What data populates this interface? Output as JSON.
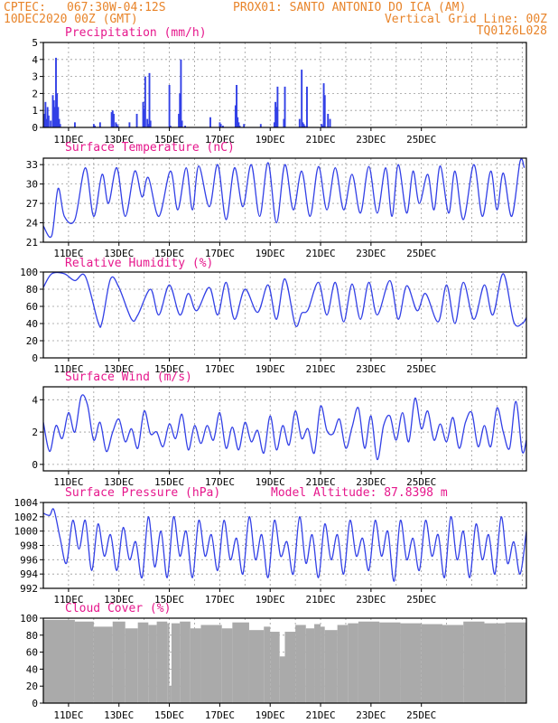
{
  "header": {
    "line1_left": "CPTEC:",
    "line1_coords": "067:30W-04:12S",
    "line1_station": "PROX01: SANTO ANTONIO DO ICA (AM)",
    "line2_left": "10DEC2020 00Z (GMT)",
    "line2_right": "Vertical Grid Line: 00Z",
    "line3_right": "TQ0126L028"
  },
  "colors": {
    "header": "#e8842a",
    "title": "#e6178c",
    "line": "#3240e6",
    "cloud": "#aaaaaa"
  },
  "day_labels": [
    "11DEC",
    "13DEC",
    "15DEC",
    "17DEC",
    "19DEC",
    "21DEC",
    "23DEC",
    "25DEC"
  ],
  "chart_data": [
    {
      "type": "bar",
      "title": "Precipitation (mm/h)",
      "ylim": [
        0,
        5
      ],
      "yticks": [
        "0",
        "1",
        "2",
        "3",
        "4",
        "5"
      ],
      "grid": true,
      "x_unit": "hours since 10DEC2020 00Z",
      "x": [
        1,
        2,
        3,
        4,
        5,
        7,
        9,
        10,
        11,
        12,
        13,
        14,
        15,
        16,
        30,
        48,
        49,
        54,
        65,
        66,
        67,
        69,
        70,
        71,
        82,
        89,
        95,
        96,
        97,
        99,
        100,
        101,
        102,
        120,
        121,
        129,
        130,
        131,
        132,
        135,
        159,
        168,
        169,
        171,
        183,
        184,
        185,
        186,
        187,
        191,
        207,
        220,
        221,
        222,
        223,
        229,
        230,
        244,
        246,
        247,
        248,
        249,
        251,
        265,
        266,
        267,
        268,
        271,
        273
      ],
      "values": [
        0.8,
        1.5,
        0.5,
        1.2,
        0.7,
        0.4,
        1.9,
        1.6,
        1.2,
        4.1,
        2.0,
        1.2,
        0.5,
        0.2,
        0.3,
        0.2,
        0.1,
        0.3,
        0.9,
        1.0,
        0.8,
        0.3,
        0.2,
        0.1,
        0.3,
        0.8,
        1.5,
        1.1,
        3.0,
        0.5,
        0.2,
        3.2,
        0.4,
        2.5,
        0.1,
        0.8,
        2.0,
        4.0,
        0.4,
        0.1,
        0.6,
        0.3,
        0.2,
        0.1,
        1.3,
        2.5,
        0.6,
        0.3,
        0.1,
        0.2,
        0.2,
        0.3,
        1.5,
        1.2,
        2.4,
        0.5,
        2.4,
        0.5,
        3.4,
        0.3,
        0.2,
        0.1,
        2.4,
        0.2,
        0.1,
        2.6,
        1.9,
        0.8,
        0.5
      ]
    },
    {
      "type": "line",
      "title": "Surface Temperature (nC)",
      "ylim": [
        21,
        34
      ],
      "yticks": [
        "21",
        "24",
        "27",
        "30",
        "33"
      ],
      "grid": true,
      "x_unit": "hours since 10DEC2020 00Z",
      "x": [
        0,
        8,
        14,
        20,
        30,
        40,
        48,
        56,
        62,
        70,
        78,
        87,
        94,
        100,
        110,
        121,
        128,
        136,
        142,
        148,
        158,
        166,
        174,
        182,
        190,
        198,
        206,
        214,
        222,
        230,
        238,
        246,
        254,
        262,
        270,
        278,
        286,
        294,
        302,
        310,
        318,
        326,
        332,
        338,
        346,
        352,
        358,
        366,
        372,
        378,
        386,
        392,
        400,
        410,
        418,
        426,
        432,
        438,
        446,
        454,
        458
      ],
      "values": [
        23.5,
        22,
        29.3,
        25,
        24.5,
        32.5,
        25,
        31.5,
        27,
        32.5,
        25,
        32,
        28,
        31,
        25,
        32,
        26,
        32.5,
        26,
        32.8,
        26.5,
        33,
        24.5,
        32.5,
        26.5,
        33,
        25,
        33.3,
        24,
        33,
        26,
        32,
        25,
        32.7,
        26,
        32.5,
        26,
        31.5,
        25.5,
        32.7,
        25.5,
        32.5,
        25,
        33,
        25.5,
        32,
        27,
        31.5,
        26,
        32.8,
        25.5,
        32,
        24.5,
        33,
        25,
        32,
        26,
        31.7,
        25,
        33.5,
        32.5
      ]
    },
    {
      "type": "line",
      "title": "Relative Humidity (%)",
      "ylim": [
        0,
        100
      ],
      "yticks": [
        "0",
        "20",
        "40",
        "60",
        "80",
        "100"
      ],
      "grid": true,
      "x_unit": "hours since 10DEC2020 00Z",
      "x": [
        0,
        8,
        20,
        30,
        40,
        52,
        56,
        64,
        72,
        84,
        90,
        102,
        110,
        120,
        130,
        138,
        146,
        158,
        166,
        174,
        182,
        192,
        204,
        214,
        222,
        230,
        240,
        246,
        252,
        262,
        270,
        278,
        286,
        294,
        302,
        310,
        318,
        330,
        338,
        346,
        356,
        364,
        376,
        384,
        392,
        400,
        410,
        420,
        428,
        438,
        448,
        456,
        460
      ],
      "values": [
        82,
        98,
        98,
        90,
        95,
        42,
        42,
        92,
        82,
        45,
        50,
        80,
        50,
        85,
        50,
        75,
        55,
        82,
        50,
        88,
        45,
        80,
        53,
        85,
        45,
        92,
        38,
        52,
        56,
        88,
        50,
        88,
        42,
        86,
        45,
        88,
        50,
        90,
        45,
        84,
        55,
        75,
        42,
        85,
        40,
        88,
        45,
        85,
        50,
        98,
        42,
        40,
        47
      ]
    },
    {
      "type": "line",
      "title": "Surface Wind (m/s)",
      "ylim": [
        -0.4,
        4.8
      ],
      "yticks": [
        "0",
        "2",
        "4"
      ],
      "grid": true,
      "x_unit": "hours since 10DEC2020 00Z",
      "x": [
        0,
        6,
        12,
        18,
        24,
        30,
        36,
        42,
        48,
        54,
        60,
        66,
        72,
        78,
        84,
        90,
        96,
        102,
        108,
        114,
        120,
        126,
        132,
        138,
        144,
        150,
        156,
        162,
        168,
        174,
        180,
        186,
        192,
        198,
        204,
        210,
        216,
        222,
        228,
        234,
        240,
        246,
        252,
        258,
        264,
        270,
        276,
        282,
        288,
        294,
        300,
        306,
        312,
        318,
        324,
        330,
        336,
        342,
        348,
        354,
        360,
        366,
        372,
        378,
        384,
        390,
        396,
        402,
        408,
        414,
        420,
        426,
        432,
        438,
        444,
        450,
        456,
        460
      ],
      "values": [
        2.6,
        0.8,
        2.4,
        1.6,
        3.2,
        2.0,
        4.2,
        3.7,
        1.5,
        2.6,
        0.8,
        2.0,
        2.8,
        1.4,
        2.2,
        1.0,
        3.3,
        1.9,
        2.0,
        1.1,
        2.5,
        1.6,
        3.1,
        0.9,
        2.4,
        1.3,
        2.4,
        1.5,
        3.2,
        1.0,
        2.3,
        0.9,
        2.6,
        1.4,
        2.1,
        0.7,
        3.0,
        0.9,
        2.4,
        1.2,
        3.3,
        1.6,
        2.2,
        0.7,
        3.6,
        2.1,
        1.9,
        2.8,
        1.0,
        2.3,
        3.5,
        1.0,
        3.0,
        0.3,
        2.4,
        3.0,
        1.5,
        3.2,
        1.4,
        4.1,
        2.2,
        3.3,
        1.5,
        2.5,
        1.4,
        2.9,
        1.0,
        2.6,
        3.2,
        1.1,
        2.4,
        1.1,
        3.5,
        2.0,
        1.0,
        3.9,
        0.8,
        1.5
      ]
    },
    {
      "type": "line",
      "title": "Surface Pressure (hPa)",
      "annotation": "Model Altitude: 87.8398 m",
      "ylim": [
        992,
        1004
      ],
      "yticks": [
        "992",
        "994",
        "996",
        "998",
        "1000",
        "1002",
        "1004"
      ],
      "grid": true,
      "x_unit": "hours since 10DEC2020 00Z",
      "x": [
        0,
        6,
        10,
        16,
        22,
        28,
        34,
        40,
        46,
        52,
        58,
        64,
        70,
        76,
        82,
        88,
        94,
        100,
        106,
        112,
        118,
        124,
        130,
        136,
        142,
        148,
        154,
        160,
        166,
        172,
        178,
        184,
        190,
        196,
        202,
        208,
        214,
        220,
        226,
        232,
        238,
        244,
        250,
        256,
        262,
        268,
        274,
        280,
        286,
        292,
        298,
        304,
        310,
        316,
        322,
        328,
        334,
        340,
        346,
        352,
        358,
        364,
        370,
        376,
        382,
        388,
        394,
        400,
        406,
        412,
        418,
        424,
        430,
        436,
        442,
        448,
        454,
        460
      ],
      "values": [
        1002.5,
        1002.2,
        1003,
        999,
        995.5,
        1001.5,
        997.5,
        1001.5,
        994.5,
        1001,
        996.5,
        999.5,
        994.5,
        1000.5,
        996,
        998.5,
        993.5,
        1002,
        995,
        1000,
        993.5,
        1002,
        996.5,
        1000,
        993.5,
        1001.5,
        996.5,
        999.5,
        994.5,
        1001.5,
        996,
        999,
        994,
        1002,
        996,
        999.5,
        993.5,
        1001.5,
        996.5,
        998.5,
        994,
        1002,
        995.5,
        999.5,
        993.5,
        1001,
        996,
        999.5,
        994,
        1001.5,
        996.5,
        999,
        994.5,
        1001.5,
        996.5,
        1000,
        993,
        1001.5,
        996,
        999,
        994.5,
        1001.5,
        996.5,
        999.5,
        993.5,
        1002,
        996,
        1000,
        993.5,
        1001,
        996,
        999.5,
        994,
        1002,
        995.5,
        998.5,
        994,
        1000
      ]
    },
    {
      "type": "area",
      "title": "Cloud Cover (%)",
      "ylim": [
        0,
        100
      ],
      "yticks": [
        "0",
        "20",
        "40",
        "60",
        "80",
        "100"
      ],
      "grid": true,
      "x_unit": "hours since 10DEC2020 00Z",
      "x": [
        0,
        30,
        48,
        66,
        78,
        90,
        100,
        108,
        118,
        120,
        122,
        130,
        140,
        150,
        170,
        180,
        196,
        210,
        216,
        225,
        230,
        240,
        250,
        258,
        264,
        268,
        280,
        290,
        300,
        320,
        340,
        360,
        380,
        400,
        420,
        440,
        460
      ],
      "values": [
        98,
        96,
        90,
        96,
        88,
        95,
        92,
        96,
        94,
        20,
        94,
        96,
        88,
        92,
        88,
        95,
        86,
        90,
        84,
        55,
        84,
        92,
        88,
        93,
        90,
        86,
        92,
        94,
        96,
        95,
        94,
        93,
        92,
        96,
        94,
        95,
        92
      ]
    }
  ]
}
